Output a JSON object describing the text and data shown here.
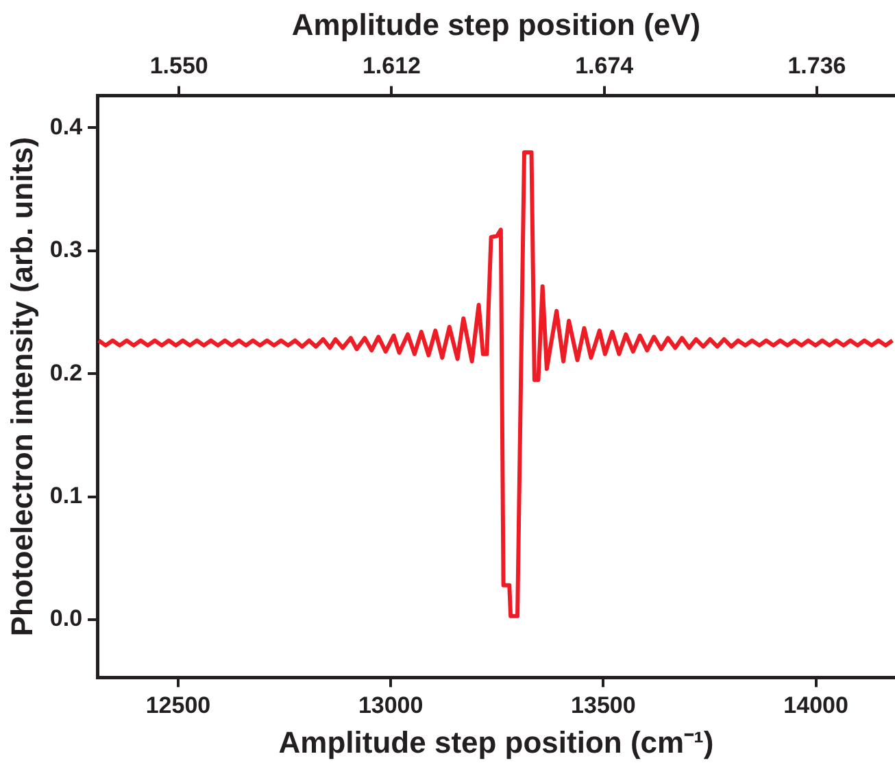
{
  "chart_data": {
    "type": "line",
    "xlabel": "Amplitude step position (cm⁻¹)",
    "x2label": "Amplitude step position (eV)",
    "ylabel": "Photoelectron intensity (arb. units)",
    "xlim": [
      12310,
      14186
    ],
    "xticks": [
      12500,
      13000,
      13500,
      14000
    ],
    "x2lim": [
      1.5262,
      1.7588
    ],
    "x2ticks": [
      {
        "value": 1.55,
        "label": "1.550"
      },
      {
        "value": 1.612,
        "label": "1.612"
      },
      {
        "value": 1.674,
        "label": "1.674"
      },
      {
        "value": 1.736,
        "label": "1.736"
      }
    ],
    "ylim": [
      -0.047,
      0.426
    ],
    "yticks": [
      {
        "value": 0,
        "label": "0.0"
      },
      {
        "value": 0.1,
        "label": "0.1"
      },
      {
        "value": 0.2,
        "label": "0.2"
      },
      {
        "value": 0.3,
        "label": "0.3"
      },
      {
        "value": 0.4,
        "label": "0.4"
      }
    ],
    "grid": false,
    "legend": false,
    "marker": "none",
    "line_style": "solid",
    "series": [
      {
        "color": "#ee1c25",
        "x": [
          12313,
          12329.5,
          12346,
          12362.5,
          12379,
          12395.5,
          12412,
          12428.5,
          12445,
          12461.5,
          12478,
          12494.5,
          12511,
          12527.5,
          12544,
          12560.5,
          12577,
          12593.5,
          12610,
          12626.5,
          12643,
          12659.5,
          12676,
          12692.5,
          12709,
          12725.5,
          12742,
          12758.5,
          12775,
          12791.5,
          12808,
          12824,
          12841,
          12857,
          12870,
          12887,
          12906,
          12920,
          12939,
          12955,
          12971,
          12988,
          13007,
          13020,
          13040,
          13056,
          13072,
          13089,
          13105,
          13121,
          13138,
          13157,
          13171,
          13191,
          13207,
          13217,
          13226,
          13236,
          13250,
          13259,
          13265,
          13279,
          13282,
          13298,
          13314,
          13331,
          13338,
          13347,
          13357,
          13367,
          13390,
          13406,
          13419,
          13439,
          13455,
          13471,
          13491,
          13504,
          13521,
          13537,
          13553,
          13570,
          13586,
          13603,
          13619,
          13636,
          13652,
          13669,
          13685,
          13702,
          13718,
          13735,
          13751,
          13768,
          13784,
          13801,
          13817,
          13834,
          13850,
          13867,
          13883,
          13900,
          13916,
          13933,
          13949,
          13966,
          13982,
          13999,
          14015,
          14032,
          14048,
          14065,
          14081,
          14098,
          14114,
          14131,
          14147,
          14164,
          14180
        ],
        "values": [
          0.227,
          0.223,
          0.227,
          0.223,
          0.227,
          0.223,
          0.227,
          0.223,
          0.227,
          0.223,
          0.227,
          0.223,
          0.227,
          0.223,
          0.227,
          0.223,
          0.227,
          0.223,
          0.227,
          0.223,
          0.227,
          0.223,
          0.227,
          0.223,
          0.227,
          0.223,
          0.227,
          0.223,
          0.227,
          0.222,
          0.227,
          0.222,
          0.228,
          0.221,
          0.228,
          0.221,
          0.229,
          0.22,
          0.229,
          0.219,
          0.23,
          0.218,
          0.231,
          0.217,
          0.232,
          0.216,
          0.234,
          0.215,
          0.235,
          0.213,
          0.238,
          0.212,
          0.245,
          0.21,
          0.256,
          0.216,
          0.216,
          0.311,
          0.312,
          0.317,
          0.028,
          0.028,
          0.003,
          0.003,
          0.38,
          0.38,
          0.195,
          0.195,
          0.271,
          0.204,
          0.251,
          0.21,
          0.243,
          0.211,
          0.237,
          0.213,
          0.235,
          0.216,
          0.234,
          0.216,
          0.232,
          0.218,
          0.231,
          0.219,
          0.23,
          0.22,
          0.229,
          0.221,
          0.229,
          0.221,
          0.228,
          0.222,
          0.228,
          0.222,
          0.228,
          0.222,
          0.227,
          0.223,
          0.227,
          0.223,
          0.227,
          0.223,
          0.227,
          0.223,
          0.227,
          0.223,
          0.227,
          0.223,
          0.227,
          0.223,
          0.227,
          0.223,
          0.227,
          0.223,
          0.227,
          0.223,
          0.227,
          0.223,
          0.227
        ]
      }
    ]
  }
}
